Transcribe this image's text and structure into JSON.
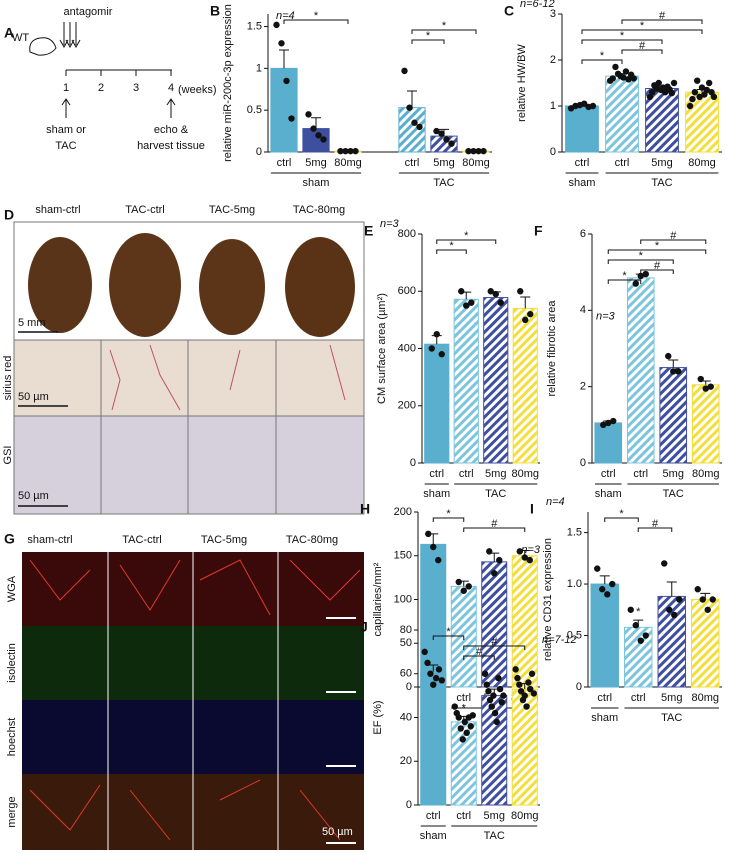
{
  "schematic": {
    "panel": "A",
    "title": "antagomir",
    "mouse": "WT",
    "weeks": [
      "1",
      "2",
      "3",
      "4"
    ],
    "unit": "(weeks)",
    "start": [
      "sham or",
      "TAC"
    ],
    "end": [
      "echo &",
      "harvest tissue"
    ]
  },
  "histology": {
    "panel": "D",
    "columns": [
      "sham-ctrl",
      "TAC-ctrl",
      "TAC-5mg",
      "TAC-80mg"
    ],
    "rows": [
      "sirius red",
      "GSI"
    ],
    "scale_bars": [
      "5 mm",
      "50 µm",
      "50 µm"
    ]
  },
  "fluorescence": {
    "panel": "G",
    "columns": [
      "sham-ctrl",
      "TAC-ctrl",
      "TAC-5mg",
      "TAC-80mg"
    ],
    "rows": [
      "WGA",
      "isolectin",
      "hoechst",
      "merge"
    ],
    "scale_bar": "50 µm"
  },
  "chart_data": [
    {
      "type": "bar",
      "panel": "B",
      "ylabel": "relative miR-200c-3p expression",
      "annotation": "n=4",
      "categories": [
        "ctrl",
        "5mg",
        "80mg",
        "ctrl",
        "5mg",
        "80mg"
      ],
      "groups": [
        {
          "label": "sham",
          "start": 0,
          "end": 2
        },
        {
          "label": "TAC",
          "start": 3,
          "end": 5
        }
      ],
      "values": [
        1.0,
        0.28,
        0.01,
        0.53,
        0.19,
        0.01
      ],
      "errors": [
        0.22,
        0.13,
        0,
        0.2,
        0.08,
        0
      ],
      "points": [
        [
          1.52,
          1.3,
          0.85,
          0.4
        ],
        [
          0.45,
          0.28,
          0.2,
          0.15
        ],
        [
          0.01,
          0.01,
          0.01,
          0.01
        ],
        [
          0.97,
          0.53,
          0.35,
          0.3
        ],
        [
          0.25,
          0.22,
          0.15,
          0.1
        ],
        [
          0.01,
          0.01,
          0.01,
          0.01
        ]
      ],
      "colors": [
        "#5aafcf",
        "#3f4fa0",
        "#f3df3c",
        "#5aafcf",
        "#3f4fa0",
        "#f3df3c"
      ],
      "hatched": [
        false,
        false,
        false,
        true,
        true,
        true
      ],
      "ylim": [
        0,
        1.65
      ],
      "yticks": [
        0,
        0.5,
        1,
        1.5
      ],
      "brackets": [
        {
          "from": 0,
          "to": 2,
          "label": "*"
        },
        {
          "from": 3,
          "to": 5,
          "label": "*"
        },
        {
          "from": 3,
          "to": 4,
          "label": "*"
        }
      ],
      "bar_marks": []
    },
    {
      "type": "bar",
      "panel": "C",
      "ylabel": "relative HW/BW",
      "annotation": "n=6-12",
      "categories": [
        "ctrl",
        "ctrl",
        "5mg",
        "80mg"
      ],
      "groups": [
        {
          "label": "sham",
          "start": 0,
          "end": 0
        },
        {
          "label": "TAC",
          "start": 1,
          "end": 3
        }
      ],
      "values": [
        1.0,
        1.65,
        1.38,
        1.3
      ],
      "errors": [
        0.04,
        0.05,
        0.04,
        0.06
      ],
      "points": [
        [
          0.95,
          1.0,
          1.02,
          1.05,
          0.98,
          1.0
        ],
        [
          1.55,
          1.6,
          1.85,
          1.7,
          1.65,
          1.62,
          1.75,
          1.58,
          1.68,
          1.6
        ],
        [
          1.2,
          1.3,
          1.45,
          1.38,
          1.5,
          1.35,
          1.4,
          1.3,
          1.42,
          1.36,
          1.28,
          1.5
        ],
        [
          1.0,
          1.15,
          1.3,
          1.55,
          1.2,
          1.4,
          1.25,
          1.35,
          1.5,
          1.3,
          1.2
        ]
      ],
      "colors": [
        "#5aafcf",
        "#7cc5dd",
        "#3f4fa0",
        "#f3df3c"
      ],
      "hatched": [
        false,
        true,
        true,
        true
      ],
      "ylim": [
        0,
        3
      ],
      "yticks": [
        0,
        1,
        2,
        3
      ],
      "brackets": [
        {
          "from": 1,
          "to": 3,
          "label": "#"
        },
        {
          "from": 0,
          "to": 3,
          "label": "*"
        },
        {
          "from": 0,
          "to": 2,
          "label": "*"
        },
        {
          "from": 1,
          "to": 2,
          "label": "#"
        },
        {
          "from": 0,
          "to": 1,
          "label": "*"
        }
      ],
      "bar_marks": []
    },
    {
      "type": "bar",
      "panel": "E",
      "ylabel": "CM surface area (µm²)",
      "annotation": "n=3",
      "categories": [
        "ctrl",
        "ctrl",
        "5mg",
        "80mg"
      ],
      "groups": [
        {
          "label": "sham",
          "start": 0,
          "end": 0
        },
        {
          "label": "TAC",
          "start": 1,
          "end": 3
        }
      ],
      "values": [
        415,
        572,
        578,
        540
      ],
      "errors": [
        30,
        25,
        20,
        40
      ],
      "points": [
        [
          400,
          450,
          380
        ],
        [
          600,
          550,
          560
        ],
        [
          600,
          590,
          560
        ],
        [
          600,
          500,
          520
        ]
      ],
      "colors": [
        "#5aafcf",
        "#7cc5dd",
        "#3f4fa0",
        "#f3df3c"
      ],
      "hatched": [
        false,
        true,
        true,
        true
      ],
      "ylim": [
        0,
        800
      ],
      "yticks": [
        0,
        200,
        400,
        600,
        800
      ],
      "brackets": [
        {
          "from": 0,
          "to": 2,
          "label": "*"
        },
        {
          "from": 0,
          "to": 1,
          "label": "*"
        }
      ],
      "bar_marks": []
    },
    {
      "type": "bar",
      "panel": "F",
      "ylabel": "relative fibrotic area",
      "annotation": "n=3",
      "categories": [
        "ctrl",
        "ctrl",
        "5mg",
        "80mg"
      ],
      "groups": [
        {
          "label": "sham",
          "start": 0,
          "end": 0
        },
        {
          "label": "TAC",
          "start": 1,
          "end": 3
        }
      ],
      "values": [
        1.05,
        4.85,
        2.5,
        2.05
      ],
      "errors": [
        0.05,
        0.1,
        0.2,
        0.1
      ],
      "points": [
        [
          1.0,
          1.05,
          1.1
        ],
        [
          4.7,
          4.9,
          4.95
        ],
        [
          2.8,
          2.4,
          2.4
        ],
        [
          2.2,
          1.95,
          2.0
        ]
      ],
      "colors": [
        "#5aafcf",
        "#7cc5dd",
        "#3f4fa0",
        "#f3df3c"
      ],
      "hatched": [
        false,
        true,
        true,
        true
      ],
      "ylim": [
        0,
        6
      ],
      "yticks": [
        0,
        2,
        4,
        6
      ],
      "brackets": [
        {
          "from": 1,
          "to": 3,
          "label": "#"
        },
        {
          "from": 0,
          "to": 3,
          "label": "*"
        },
        {
          "from": 0,
          "to": 2,
          "label": "*"
        },
        {
          "from": 1,
          "to": 2,
          "label": "#"
        },
        {
          "from": 0,
          "to": 1,
          "label": "*"
        }
      ],
      "bar_marks": []
    },
    {
      "type": "bar",
      "panel": "H",
      "ylabel": "capillaries/mm²",
      "annotation": "n=3",
      "categories": [
        "ctrl",
        "ctrl",
        "5mg",
        "80mg"
      ],
      "groups": [
        {
          "label": "sham",
          "start": 0,
          "end": 0
        },
        {
          "label": "TAC",
          "start": 1,
          "end": 3
        }
      ],
      "values": [
        163,
        115,
        143,
        150
      ],
      "errors": [
        12,
        6,
        10,
        6
      ],
      "points": [
        [
          175,
          160,
          145
        ],
        [
          120,
          110,
          115
        ],
        [
          155,
          130,
          145
        ],
        [
          155,
          148,
          145
        ]
      ],
      "colors": [
        "#5aafcf",
        "#7cc5dd",
        "#3f4fa0",
        "#f3df3c"
      ],
      "hatched": [
        false,
        true,
        true,
        true
      ],
      "ylim": [
        0,
        200
      ],
      "yticks": [
        0,
        50,
        100,
        150,
        200
      ],
      "brackets": [
        {
          "from": 0,
          "to": 1,
          "label": "*"
        },
        {
          "from": 1,
          "to": 3,
          "label": "#"
        }
      ],
      "bar_marks": []
    },
    {
      "type": "bar",
      "panel": "I",
      "ylabel": "relative CD31 expression",
      "annotation": "n=4",
      "categories": [
        "ctrl",
        "ctrl",
        "5mg",
        "80mg"
      ],
      "groups": [
        {
          "label": "sham",
          "start": 0,
          "end": 0
        },
        {
          "label": "TAC",
          "start": 1,
          "end": 3
        }
      ],
      "values": [
        1.0,
        0.58,
        0.88,
        0.85
      ],
      "errors": [
        0.08,
        0.07,
        0.14,
        0.06
      ],
      "points": [
        [
          1.15,
          0.95,
          0.9,
          1.0
        ],
        [
          0.75,
          0.6,
          0.45,
          0.5
        ],
        [
          1.2,
          0.75,
          0.7,
          0.85
        ],
        [
          0.95,
          0.85,
          0.75,
          0.85
        ]
      ],
      "colors": [
        "#5aafcf",
        "#7cc5dd",
        "#3f4fa0",
        "#f3df3c"
      ],
      "hatched": [
        false,
        true,
        true,
        true
      ],
      "ylim": [
        0,
        1.7
      ],
      "yticks": [
        0,
        0.5,
        {
          "value": 1,
          "label": "1.0"
        },
        1.5
      ],
      "brackets": [
        {
          "from": 0,
          "to": 1,
          "label": "*"
        },
        {
          "from": 1,
          "to": 2,
          "label": "#"
        }
      ],
      "bar_marks": [
        {
          "index": 1,
          "label": "*"
        }
      ]
    },
    {
      "type": "bar",
      "panel": "J",
      "ylabel": "EF (%)",
      "annotation": "n=7-12",
      "categories": [
        "ctrl",
        "ctrl",
        "5mg",
        "80mg"
      ],
      "groups": [
        {
          "label": "sham",
          "start": 0,
          "end": 0
        },
        {
          "label": "TAC",
          "start": 1,
          "end": 3
        }
      ],
      "values": [
        61,
        38,
        50,
        53
      ],
      "errors": [
        3,
        2.5,
        3,
        2.5
      ],
      "points": [
        [
          70,
          65,
          60,
          55,
          58,
          62,
          57
        ],
        [
          45,
          42,
          40,
          35,
          30,
          38,
          33,
          40,
          36,
          41
        ],
        [
          60,
          55,
          52,
          48,
          45,
          50,
          42,
          38,
          58,
          53,
          47,
          50
        ],
        [
          62,
          58,
          55,
          52,
          48,
          50,
          45,
          56,
          53,
          60,
          51
        ]
      ],
      "colors": [
        "#5aafcf",
        "#7cc5dd",
        "#3f4fa0",
        "#f3df3c"
      ],
      "hatched": [
        false,
        true,
        true,
        true
      ],
      "ylim": [
        0,
        80
      ],
      "yticks": [
        0,
        20,
        40,
        60,
        80
      ],
      "brackets": [
        {
          "from": 0,
          "to": 1,
          "label": "*"
        },
        {
          "from": 1,
          "to": 3,
          "label": "#"
        },
        {
          "from": 1,
          "to": 2,
          "label": "#"
        }
      ],
      "bar_marks": [
        {
          "index": 1,
          "label": "*"
        }
      ]
    }
  ]
}
